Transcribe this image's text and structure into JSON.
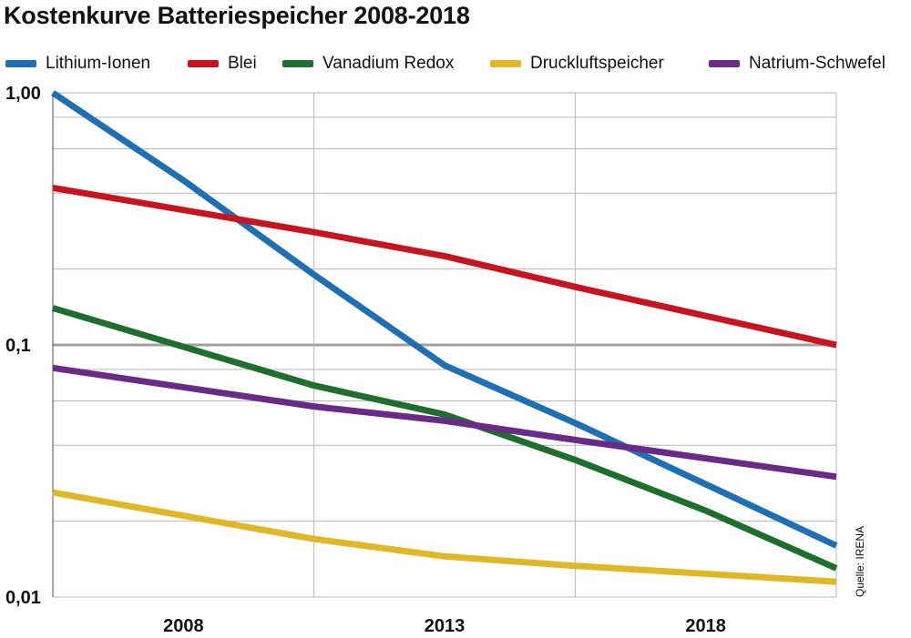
{
  "chart_data": {
    "type": "line",
    "title": "Kostenkurve Batteriespeicher 2008-2018",
    "source": "Quelle: IRENA",
    "y_scale": "log",
    "ylim": [
      0.01,
      1.0
    ],
    "y_tick_labels": [
      "1,00",
      "0,1",
      "0,01"
    ],
    "y_tick_values": [
      1.0,
      0.1,
      0.01
    ],
    "x_tick_labels": [
      "2008",
      "2013",
      "2018"
    ],
    "xlim": [
      2005,
      2020
    ],
    "grid": true,
    "legend_position": "top",
    "series": [
      {
        "name": "Lithium-Ionen",
        "color": "#1f6fb5",
        "x": [
          2005,
          2007.5,
          2010,
          2012.5,
          2015,
          2017.5,
          2020
        ],
        "y": [
          1.0,
          0.45,
          0.19,
          0.083,
          0.049,
          0.028,
          0.016
        ]
      },
      {
        "name": "Blei",
        "color": "#c8141f",
        "x": [
          2005,
          2010,
          2012.5,
          2015,
          2020
        ],
        "y": [
          0.42,
          0.28,
          0.225,
          0.17,
          0.1
        ]
      },
      {
        "name": "Vanadium Redox",
        "color": "#1e6e2e",
        "x": [
          2005,
          2010,
          2012.5,
          2015,
          2017.5,
          2020
        ],
        "y": [
          0.14,
          0.069,
          0.053,
          0.035,
          0.022,
          0.013
        ]
      },
      {
        "name": "Druckluftspeicher",
        "color": "#e0b825",
        "x": [
          2005,
          2010,
          2012.5,
          2015,
          2020
        ],
        "y": [
          0.026,
          0.017,
          0.0145,
          0.0133,
          0.0115
        ]
      },
      {
        "name": "Natrium-Schwefel",
        "color": "#6a2a88",
        "x": [
          2005,
          2010,
          2012.5,
          2015,
          2020
        ],
        "y": [
          0.081,
          0.057,
          0.05,
          0.042,
          0.03
        ]
      }
    ]
  }
}
